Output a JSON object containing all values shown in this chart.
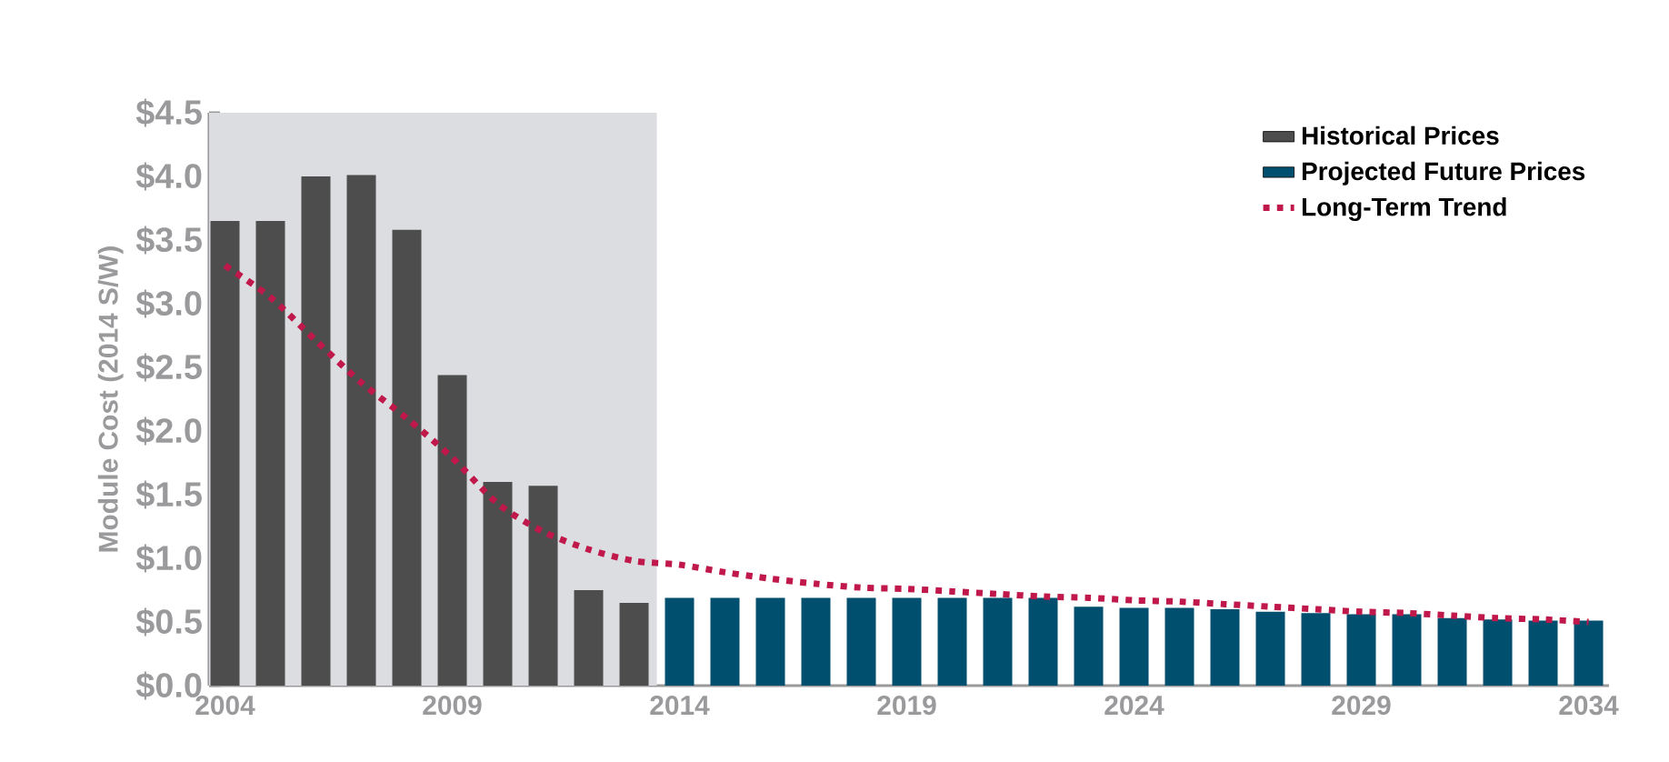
{
  "chart_data": {
    "type": "bar",
    "ylabel": "Module Cost (2014 S/W)",
    "categories": [
      "2004",
      null,
      null,
      null,
      null,
      "2009",
      null,
      null,
      null,
      null,
      "2014",
      null,
      null,
      null,
      null,
      "2019",
      null,
      null,
      null,
      null,
      "2024",
      null,
      null,
      null,
      null,
      "2029",
      null,
      null,
      null,
      null,
      "2034"
    ],
    "series": [
      {
        "name": "Historical Prices",
        "color": "#4d4d4d",
        "values": [
          3.65,
          3.65,
          4.0,
          4.01,
          3.58,
          2.44,
          1.6,
          1.57,
          0.75,
          0.65,
          null,
          null,
          null,
          null,
          null,
          null,
          null,
          null,
          null,
          null,
          null,
          null,
          null,
          null,
          null,
          null,
          null,
          null,
          null,
          null,
          null
        ]
      },
      {
        "name": "Projected Future Prices",
        "color": "#004f6e",
        "values": [
          null,
          null,
          null,
          null,
          null,
          null,
          null,
          null,
          null,
          null,
          0.69,
          0.69,
          0.69,
          0.69,
          0.69,
          0.69,
          0.69,
          0.69,
          0.69,
          0.62,
          0.61,
          0.61,
          0.6,
          0.58,
          0.57,
          0.56,
          0.56,
          0.53,
          0.52,
          0.51,
          0.51
        ]
      },
      {
        "name": "Long-Term Trend",
        "type": "line",
        "line_style": "dotted",
        "color": "#c0184a",
        "values": [
          3.3,
          3.05,
          2.71,
          2.38,
          2.1,
          1.79,
          1.43,
          1.21,
          1.07,
          0.98,
          0.95,
          0.89,
          0.84,
          0.8,
          0.77,
          0.76,
          0.74,
          0.72,
          0.7,
          0.69,
          0.67,
          0.66,
          0.64,
          0.62,
          0.6,
          0.58,
          0.57,
          0.55,
          0.53,
          0.52,
          0.5
        ]
      }
    ],
    "bands": [
      {
        "axis": "x",
        "from": "2004",
        "to": "2014",
        "color": "#dcdde0"
      }
    ],
    "ylim": [
      0,
      4.5
    ],
    "yticks": [
      {
        "value": 0,
        "label": "$0.0"
      },
      {
        "value": 0.5,
        "label": "$0.5"
      },
      {
        "value": 1,
        "label": "$1.0"
      },
      {
        "value": 1.5,
        "label": "$1.5"
      },
      {
        "value": 2,
        "label": "$2.0"
      },
      {
        "value": 2.5,
        "label": "$2.5"
      },
      {
        "value": 3,
        "label": "$3.0"
      },
      {
        "value": 3.5,
        "label": "$3.5"
      },
      {
        "value": 4,
        "label": "$4.0"
      },
      {
        "value": 4.5,
        "label": "$4.5"
      }
    ],
    "grid": false,
    "legend": "top right",
    "marker": "none"
  }
}
